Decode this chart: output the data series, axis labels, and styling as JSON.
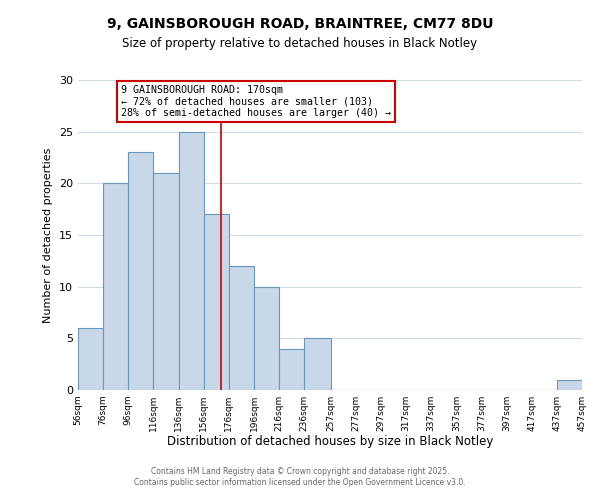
{
  "title_line1": "9, GAINSBOROUGH ROAD, BRAINTREE, CM77 8DU",
  "title_line2": "Size of property relative to detached houses in Black Notley",
  "xlabel": "Distribution of detached houses by size in Black Notley",
  "ylabel": "Number of detached properties",
  "bin_edges": [
    56,
    76,
    96,
    116,
    136,
    156,
    176,
    196,
    216,
    236,
    257,
    277,
    297,
    317,
    337,
    357,
    377,
    397,
    417,
    437,
    457
  ],
  "bin_counts": [
    6,
    20,
    23,
    21,
    25,
    17,
    12,
    10,
    4,
    5,
    0,
    0,
    0,
    0,
    0,
    0,
    0,
    0,
    0,
    1
  ],
  "bar_color": "#c8d8e8",
  "bar_edge_color": "#6699bb",
  "red_line_x": 170,
  "annotation_text": "9 GAINSBOROUGH ROAD: 170sqm\n← 72% of detached houses are smaller (103)\n28% of semi-detached houses are larger (40) →",
  "annotation_box_color": "#ffffff",
  "annotation_border_color": "#cc0000",
  "ylim": [
    0,
    30
  ],
  "yticks": [
    0,
    5,
    10,
    15,
    20,
    25,
    30
  ],
  "background_color": "#ffffff",
  "grid_color": "#d0dde8",
  "footer_line1": "Contains HM Land Registry data © Crown copyright and database right 2025.",
  "footer_line2": "Contains public sector information licensed under the Open Government Licence v3.0.",
  "tick_labels": [
    "56sqm",
    "76sqm",
    "96sqm",
    "116sqm",
    "136sqm",
    "156sqm",
    "176sqm",
    "196sqm",
    "216sqm",
    "236sqm",
    "257sqm",
    "277sqm",
    "297sqm",
    "317sqm",
    "337sqm",
    "357sqm",
    "377sqm",
    "397sqm",
    "417sqm",
    "437sqm",
    "457sqm"
  ]
}
